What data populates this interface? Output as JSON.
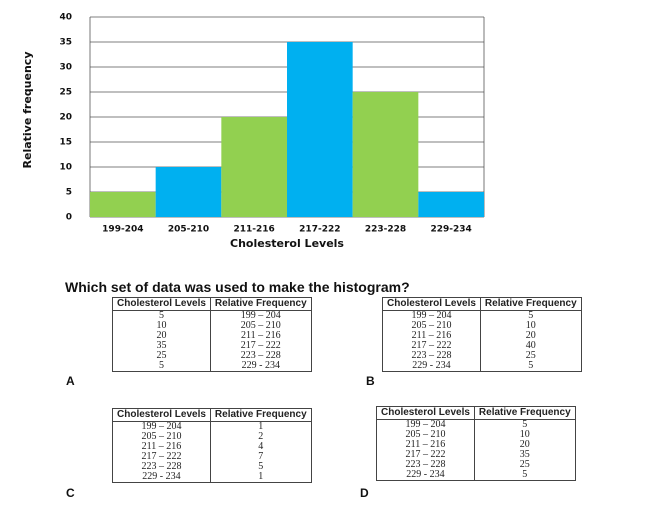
{
  "chart_data": {
    "type": "bar",
    "y_label": "Relative frequency",
    "x_label": "Cholesterol Levels",
    "categories": [
      "199-204",
      "205-210",
      "211-216",
      "217-222",
      "223-228",
      "229-234"
    ],
    "values": [
      5,
      10,
      20,
      35,
      25,
      5
    ],
    "colors": [
      "#92d050",
      "#00b0f0",
      "#92d050",
      "#00b0f0",
      "#92d050",
      "#00b0f0"
    ],
    "ylim": [
      0,
      40
    ],
    "yticks": [
      0,
      5,
      10,
      15,
      20,
      25,
      30,
      35,
      40
    ],
    "grid": true
  },
  "question": "Which set of data was used to make the histogram?",
  "options": [
    {
      "letter": "A",
      "header": [
        "Cholesterol Levels",
        "Relative Frequency"
      ],
      "rows": [
        [
          "5",
          "199 – 204"
        ],
        [
          "10",
          "205 – 210"
        ],
        [
          "20",
          "211 – 216"
        ],
        [
          "35",
          "217 – 222"
        ],
        [
          "25",
          "223 – 228"
        ],
        [
          "5",
          "229 - 234"
        ]
      ]
    },
    {
      "letter": "B",
      "header": [
        "Cholesterol Levels",
        "Relative Frequency"
      ],
      "rows": [
        [
          "199 – 204",
          "5"
        ],
        [
          "205 – 210",
          "10"
        ],
        [
          "211 – 216",
          "20"
        ],
        [
          "217 – 222",
          "40"
        ],
        [
          "223 – 228",
          "25"
        ],
        [
          "229 - 234",
          "5"
        ]
      ]
    },
    {
      "letter": "C",
      "header": [
        "Cholesterol Levels",
        "Relative Frequency"
      ],
      "rows": [
        [
          "199 – 204",
          "1"
        ],
        [
          "205 – 210",
          "2"
        ],
        [
          "211 – 216",
          "4"
        ],
        [
          "217 – 222",
          "7"
        ],
        [
          "223 – 228",
          "5"
        ],
        [
          "229 - 234",
          "1"
        ]
      ]
    },
    {
      "letter": "D",
      "header": [
        "Cholesterol Levels",
        "Relative Frequency"
      ],
      "rows": [
        [
          "199 – 204",
          "5"
        ],
        [
          "205 – 210",
          "10"
        ],
        [
          "211 – 216",
          "20"
        ],
        [
          "217 – 222",
          "35"
        ],
        [
          "223 – 228",
          "25"
        ],
        [
          "229 - 234",
          "5"
        ]
      ]
    }
  ]
}
